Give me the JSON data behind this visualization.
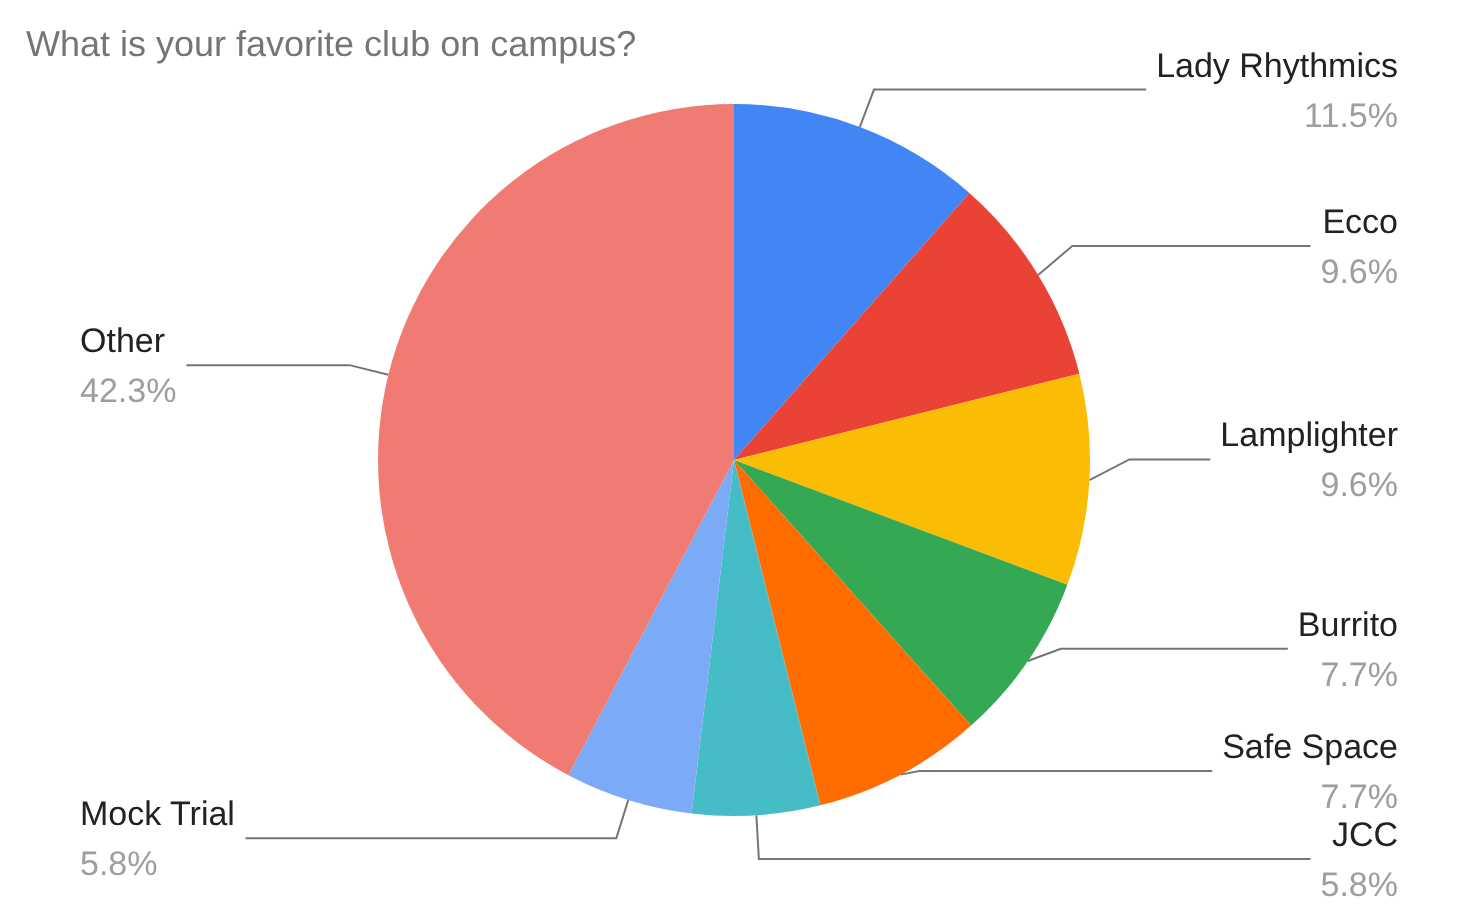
{
  "chart_data": {
    "type": "pie",
    "title": "What is your favorite club on campus?",
    "categories": [
      "Lady Rhythmics",
      "Ecco",
      "Lamplighter",
      "Burrito",
      "Safe Space",
      "JCC",
      "Mock Trial",
      "Other"
    ],
    "values": [
      11.5,
      9.6,
      9.6,
      7.7,
      7.7,
      5.8,
      5.8,
      42.3
    ],
    "value_labels": [
      "11.5%",
      "9.6%",
      "9.6%",
      "7.7%",
      "7.7%",
      "5.8%",
      "5.8%",
      "42.3%"
    ],
    "colors": [
      "#4285f4",
      "#ea4335",
      "#fbbc04",
      "#34a853",
      "#ff6d01",
      "#46bdc6",
      "#7baaf7",
      "#f07b72"
    ],
    "legend": false
  }
}
